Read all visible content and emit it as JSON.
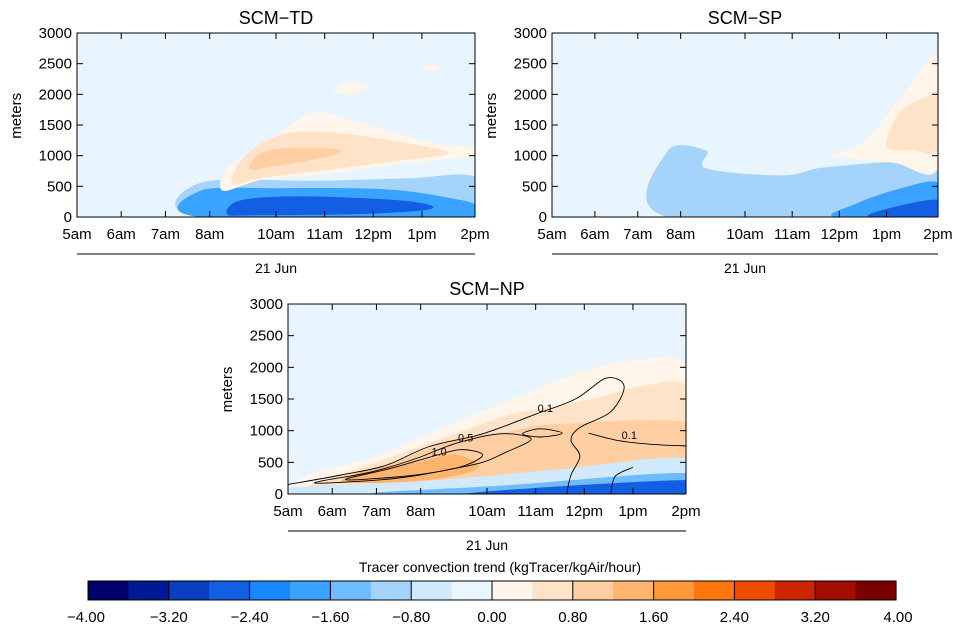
{
  "chart_data": [
    {
      "type": "heatmap",
      "title": "SCM−TD",
      "ylabel": "meters",
      "xlabel": "21 Jun",
      "x_ticks": [
        "5am",
        "6am",
        "7am",
        "8am",
        "10am",
        "11am",
        "12pm",
        "1pm",
        "2pm"
      ],
      "y_ticks": [
        "0",
        "500",
        "1000",
        "1500",
        "2000",
        "2500",
        "3000"
      ],
      "ylim": [
        0,
        3000
      ],
      "regions": [
        {
          "level": -1.2,
          "points": [
            [
              7.8,
              0
            ],
            [
              7.8,
              560
            ],
            [
              10.5,
              590
            ],
            [
              12.5,
              630
            ],
            [
              14,
              650
            ],
            [
              14,
              0
            ]
          ]
        },
        {
          "level": -2.0,
          "points": [
            [
              7.8,
              0
            ],
            [
              7.8,
              430
            ],
            [
              9.5,
              470
            ],
            [
              12,
              450
            ],
            [
              13.5,
              300
            ],
            [
              14,
              200
            ],
            [
              14,
              0
            ]
          ]
        },
        {
          "level": -2.6,
          "points": [
            [
              8.4,
              40
            ],
            [
              8.6,
              250
            ],
            [
              9.5,
              330
            ],
            [
              11,
              320
            ],
            [
              12.6,
              250
            ],
            [
              13,
              130
            ],
            [
              11.5,
              50
            ],
            [
              9,
              30
            ]
          ]
        },
        {
          "level": 0.3,
          "points": [
            [
              8.3,
              430
            ],
            [
              8.4,
              800
            ],
            [
              9.2,
              1180
            ],
            [
              10.3,
              1700
            ],
            [
              11,
              1620
            ],
            [
              13,
              1220
            ],
            [
              14,
              1130
            ],
            [
              14,
              990
            ],
            [
              12.2,
              860
            ],
            [
              10.5,
              690
            ],
            [
              9.2,
              610
            ]
          ]
        },
        {
          "level": 0.6,
          "points": [
            [
              8.5,
              540
            ],
            [
              8.8,
              1000
            ],
            [
              9.6,
              1340
            ],
            [
              10.6,
              1390
            ],
            [
              11.8,
              1280
            ],
            [
              13.4,
              1050
            ],
            [
              12.3,
              920
            ],
            [
              10.6,
              760
            ],
            [
              9.2,
              640
            ]
          ]
        },
        {
          "level": 1.0,
          "points": [
            [
              8.9,
              780
            ],
            [
              9.2,
              1060
            ],
            [
              10.1,
              1130
            ],
            [
              11,
              1080
            ],
            [
              10.4,
              940
            ],
            [
              9.4,
              820
            ]
          ]
        },
        {
          "level": 0.3,
          "points": [
            [
              10.8,
              2050
            ],
            [
              11.1,
              2200
            ],
            [
              11.6,
              2130
            ],
            [
              11.2,
              2000
            ]
          ]
        },
        {
          "level": 0.3,
          "points": [
            [
              12.8,
              2420
            ],
            [
              13.0,
              2480
            ],
            [
              13.2,
              2440
            ],
            [
              13.0,
              2390
            ]
          ]
        }
      ]
    },
    {
      "type": "heatmap",
      "title": "SCM−SP",
      "ylabel": "meters",
      "xlabel": "21 Jun",
      "x_ticks": [
        "5am",
        "6am",
        "7am",
        "8am",
        "10am",
        "11am",
        "12pm",
        "1pm",
        "2pm"
      ],
      "y_ticks": [
        "0",
        "500",
        "1000",
        "1500",
        "2000",
        "2500",
        "3000"
      ],
      "ylim": [
        0,
        3000
      ],
      "regions": [
        {
          "level": -1.2,
          "points": [
            [
              7.7,
              0
            ],
            [
              7.7,
              1080
            ],
            [
              8.6,
              1080
            ],
            [
              8.6,
              790
            ],
            [
              10.4,
              680
            ],
            [
              11.5,
              820
            ],
            [
              14,
              850
            ],
            [
              14,
              0
            ]
          ]
        },
        {
          "level": -2.0,
          "points": [
            [
              11.6,
              0
            ],
            [
              12.1,
              220
            ],
            [
              13,
              440
            ],
            [
              14,
              560
            ],
            [
              14,
              0
            ]
          ]
        },
        {
          "level": -2.6,
          "points": [
            [
              12.4,
              0
            ],
            [
              12.9,
              150
            ],
            [
              14,
              280
            ],
            [
              14,
              0
            ]
          ]
        },
        {
          "level": 0.3,
          "points": [
            [
              11.5,
              1000
            ],
            [
              12.3,
              1250
            ],
            [
              13.3,
              2100
            ],
            [
              14,
              2580
            ],
            [
              14,
              800
            ],
            [
              13,
              880
            ],
            [
              12,
              950
            ]
          ]
        },
        {
          "level": 0.6,
          "points": [
            [
              12.8,
              1150
            ],
            [
              13.1,
              1700
            ],
            [
              13.7,
              1950
            ],
            [
              14,
              1980
            ],
            [
              14,
              1100
            ],
            [
              13.4,
              1090
            ]
          ]
        }
      ]
    },
    {
      "type": "heatmap",
      "title": "SCM−NP",
      "ylabel": "meters",
      "xlabel": "21 Jun",
      "x_ticks": [
        "5am",
        "6am",
        "7am",
        "8am",
        "10am",
        "11am",
        "12pm",
        "1pm",
        "2pm"
      ],
      "y_ticks": [
        "0",
        "500",
        "1000",
        "1500",
        "2000",
        "2500",
        "3000"
      ],
      "ylim": [
        0,
        3000
      ],
      "regions": [
        {
          "level": 0.3,
          "points": [
            [
              5,
              50
            ],
            [
              5.5,
              320
            ],
            [
              7,
              600
            ],
            [
              8.5,
              1050
            ],
            [
              10,
              1480
            ],
            [
              11,
              1760
            ],
            [
              12,
              2000
            ],
            [
              13,
              2120
            ],
            [
              14,
              2020
            ],
            [
              14,
              700
            ],
            [
              12,
              420
            ],
            [
              10,
              250
            ],
            [
              8,
              170
            ],
            [
              6,
              80
            ]
          ]
        },
        {
          "level": 0.6,
          "points": [
            [
              5.5,
              100
            ],
            [
              6.8,
              450
            ],
            [
              8.5,
              880
            ],
            [
              10,
              1250
            ],
            [
              11,
              1380
            ],
            [
              12,
              1520
            ],
            [
              13,
              1700
            ],
            [
              14,
              1700
            ],
            [
              14,
              700
            ],
            [
              12,
              400
            ],
            [
              10,
              230
            ],
            [
              8,
              150
            ]
          ]
        },
        {
          "level": 1.0,
          "points": [
            [
              6.2,
              200
            ],
            [
              7.4,
              500
            ],
            [
              8.7,
              850
            ],
            [
              10.1,
              1000
            ],
            [
              11,
              1100
            ],
            [
              14,
              1130
            ],
            [
              14,
              560
            ],
            [
              12,
              410
            ],
            [
              10,
              260
            ],
            [
              8,
              180
            ]
          ]
        },
        {
          "level": 1.4,
          "points": [
            [
              6.2,
              200
            ],
            [
              6.9,
              400
            ],
            [
              7.9,
              500
            ],
            [
              8.8,
              620
            ],
            [
              9.3,
              420
            ],
            [
              8.5,
              250
            ],
            [
              7.2,
              180
            ]
          ]
        },
        {
          "level": -0.5,
          "points": [
            [
              5,
              0
            ],
            [
              5,
              100
            ],
            [
              8,
              200
            ],
            [
              11,
              380
            ],
            [
              14,
              560
            ],
            [
              14,
              0
            ]
          ]
        },
        {
          "level": -1.6,
          "points": [
            [
              7,
              0
            ],
            [
              10,
              140
            ],
            [
              14,
              330
            ],
            [
              14,
              0
            ]
          ]
        },
        {
          "level": -2.6,
          "points": [
            [
              9,
              0
            ],
            [
              14,
              220
            ],
            [
              14,
              0
            ]
          ]
        }
      ],
      "contours": [
        {
          "level": "0.1",
          "points": [
            [
              5,
              150
            ],
            [
              6.2,
              300
            ],
            [
              7.2,
              450
            ],
            [
              8.2,
              750
            ],
            [
              9.4,
              950
            ],
            [
              10.6,
              1260
            ],
            [
              11.5,
              1500
            ],
            [
              12.2,
              1830
            ],
            [
              12.6,
              1700
            ],
            [
              12.3,
              1300
            ],
            [
              11.6,
              1050
            ],
            [
              11.4,
              850
            ],
            [
              11.6,
              600
            ],
            [
              11.4,
              300
            ],
            [
              11.3,
              0
            ]
          ]
        },
        {
          "level": "0.1",
          "points": [
            [
              11.8,
              960
            ],
            [
              12.5,
              840
            ],
            [
              13.3,
              780
            ],
            [
              14,
              760
            ]
          ]
        },
        {
          "level": "0.5",
          "points": [
            [
              5.6,
              180
            ],
            [
              6.9,
              350
            ],
            [
              7.9,
              560
            ],
            [
              8.8,
              800
            ],
            [
              9.8,
              950
            ],
            [
              10.5,
              870
            ],
            [
              9.9,
              650
            ],
            [
              9.4,
              500
            ],
            [
              8.6,
              380
            ],
            [
              7.6,
              260
            ],
            [
              6.6,
              200
            ],
            [
              5.6,
              180
            ]
          ]
        },
        {
          "level": "1.0",
          "points": [
            [
              6.3,
              230
            ],
            [
              7.3,
              400
            ],
            [
              8.2,
              580
            ],
            [
              8.9,
              700
            ],
            [
              9.4,
              620
            ],
            [
              9.0,
              450
            ],
            [
              8.2,
              330
            ],
            [
              7.3,
              260
            ],
            [
              6.3,
              230
            ]
          ]
        },
        {
          "level": "",
          "points": [
            [
              10.3,
              950
            ],
            [
              10.7,
              1030
            ],
            [
              11.2,
              960
            ],
            [
              10.7,
              900
            ],
            [
              10.3,
              950
            ]
          ]
        },
        {
          "level": "",
          "points": [
            [
              12.3,
              0
            ],
            [
              12.4,
              280
            ],
            [
              12.8,
              420
            ]
          ]
        }
      ]
    }
  ],
  "colorbar": {
    "title": "Tracer convection trend (kgTracer/kgAir/hour)",
    "min": -4.0,
    "max": 4.0,
    "tick_labels": [
      "−4.00",
      "−3.20",
      "−2.40",
      "−1.60",
      "−0.80",
      "0.00",
      "0.80",
      "1.60",
      "2.40",
      "3.20",
      "4.00"
    ],
    "colors": [
      "#00006e",
      "#001a96",
      "#0a3dc0",
      "#135fe3",
      "#1a86ff",
      "#3aa2ff",
      "#6ebcff",
      "#a4d4fb",
      "#d0e9fb",
      "#eaf6fe",
      "#fff5ea",
      "#ffe3c9",
      "#ffcfa3",
      "#fdb46f",
      "#ff9838",
      "#ff7610",
      "#ef4e00",
      "#cc2600",
      "#a30c00",
      "#7a0000"
    ]
  }
}
